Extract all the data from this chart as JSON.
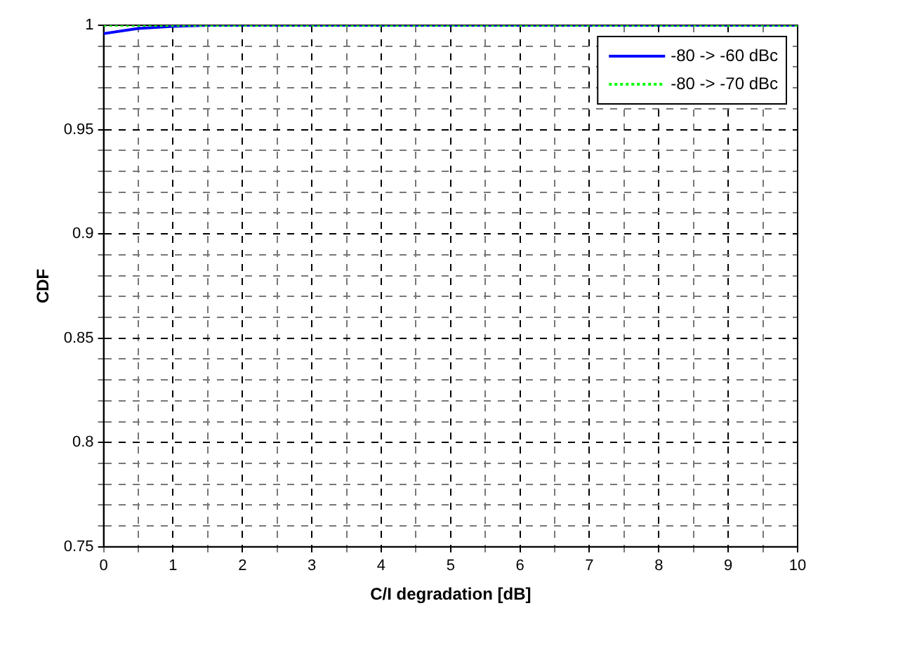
{
  "chart_data": {
    "type": "line",
    "xlabel": "C/I degradation [dB]",
    "ylabel": "CDF",
    "x": [
      0,
      0.5,
      1,
      1.5,
      2,
      3,
      4,
      5,
      6,
      7,
      8,
      9,
      10
    ],
    "series": [
      {
        "name": "-80 -> -60 dBc",
        "color": "#0000ff",
        "line_style": "solid",
        "values": [
          0.996,
          0.9985,
          0.9995,
          1,
          1,
          1,
          1,
          1,
          1,
          1,
          1,
          1,
          1
        ]
      },
      {
        "name": "-80 -> -70 dBc",
        "color": "#00ff00",
        "line_style": "dotted",
        "values": [
          1,
          1,
          1,
          1,
          1,
          1,
          1,
          1,
          1,
          1,
          1,
          1,
          1
        ]
      }
    ],
    "xlim": [
      0,
      10
    ],
    "xticks": [
      0,
      {
        "value": 0.5,
        "label": null
      },
      1,
      {
        "value": 1.5,
        "label": null
      },
      2,
      {
        "value": 2.5,
        "label": null
      },
      3,
      {
        "value": 3.5,
        "label": null
      },
      4,
      {
        "value": 4.5,
        "label": null
      },
      5,
      {
        "value": 5.5,
        "label": null
      },
      6,
      {
        "value": 6.5,
        "label": null
      },
      7,
      {
        "value": 7.5,
        "label": null
      },
      8,
      {
        "value": 8.5,
        "label": null
      },
      9,
      {
        "value": 9.5,
        "label": null
      },
      10
    ],
    "ylim": [
      0.75,
      1
    ],
    "yticks": [
      0.75,
      {
        "value": 0.76,
        "label": null
      },
      {
        "value": 0.77,
        "label": null
      },
      {
        "value": 0.78,
        "label": null
      },
      {
        "value": 0.79,
        "label": null
      },
      0.8,
      {
        "value": 0.81,
        "label": null
      },
      {
        "value": 0.82,
        "label": null
      },
      {
        "value": 0.83,
        "label": null
      },
      {
        "value": 0.84,
        "label": null
      },
      0.85,
      {
        "value": 0.86,
        "label": null
      },
      {
        "value": 0.87,
        "label": null
      },
      {
        "value": 0.88,
        "label": null
      },
      {
        "value": 0.89,
        "label": null
      },
      0.9,
      {
        "value": 0.91,
        "label": null
      },
      {
        "value": 0.92,
        "label": null
      },
      {
        "value": 0.93,
        "label": null
      },
      {
        "value": 0.94,
        "label": null
      },
      0.95,
      {
        "value": 0.96,
        "label": null
      },
      {
        "value": 0.97,
        "label": null
      },
      {
        "value": 0.98,
        "label": null
      },
      {
        "value": 0.99,
        "label": null
      },
      1
    ],
    "grid": true,
    "legend": "top right",
    "marker": "none"
  }
}
